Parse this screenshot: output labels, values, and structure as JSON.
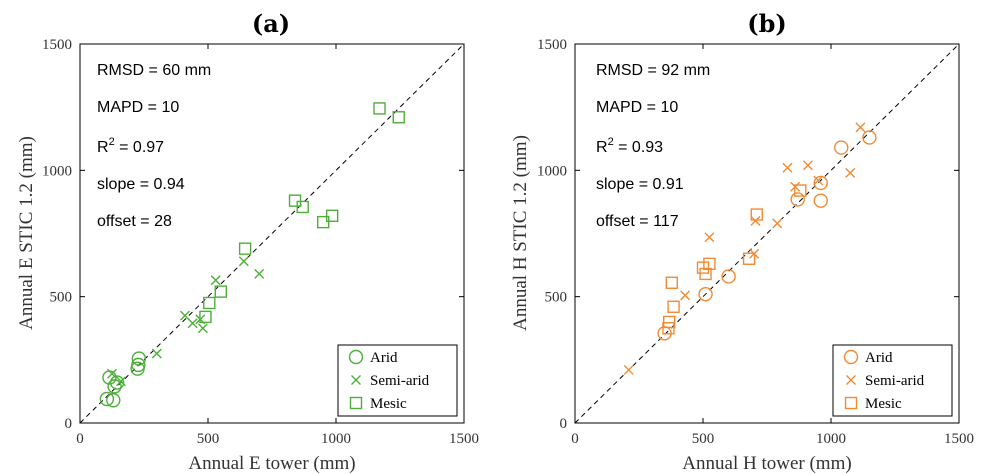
{
  "chart_data": [
    {
      "type": "scatter",
      "title": "(a)",
      "xlabel": "Annual E tower (mm)",
      "ylabel": "Annual E STIC 1.2 (mm)",
      "xlim": [
        0,
        1500
      ],
      "ylim": [
        0,
        1500
      ],
      "xticks": [
        "0",
        "500",
        "1000",
        "1500"
      ],
      "yticks": [
        "0",
        "500",
        "1000",
        "1500"
      ],
      "one_to_one_line": true,
      "color": "#4daf3a",
      "stats": [
        "RMSD = 60 mm",
        "MAPD = 10",
        "R²",
        "= 0.97",
        "slope = 0.94",
        "offset = 28"
      ],
      "stats_parts": {
        "rmsd": "RMSD = 60 mm",
        "mapd": "MAPD = 10",
        "r2_base": "R",
        "r2_sup": "2",
        "r2_val": " = 0.97",
        "slope": "slope = 0.94",
        "offset": "offset = 28"
      },
      "legend_position": "bottom-right",
      "series": [
        {
          "name": "Arid",
          "marker": "circle",
          "points": [
            [
              105,
              95
            ],
            [
              115,
              180
            ],
            [
              130,
              90
            ],
            [
              135,
              145
            ],
            [
              145,
              160
            ],
            [
              225,
              215
            ],
            [
              228,
              230
            ],
            [
              230,
              255
            ]
          ]
        },
        {
          "name": "Semi-arid",
          "marker": "x",
          "points": [
            [
              125,
              195
            ],
            [
              160,
              165
            ],
            [
              300,
              275
            ],
            [
              410,
              425
            ],
            [
              440,
              395
            ],
            [
              470,
              410
            ],
            [
              480,
              375
            ],
            [
              530,
              565
            ],
            [
              640,
              640
            ],
            [
              700,
              590
            ]
          ]
        },
        {
          "name": "Mesic",
          "marker": "square",
          "points": [
            [
              490,
              420
            ],
            [
              505,
              475
            ],
            [
              550,
              520
            ],
            [
              645,
              690
            ],
            [
              840,
              880
            ],
            [
              870,
              855
            ],
            [
              950,
              795
            ],
            [
              985,
              820
            ],
            [
              1170,
              1245
            ],
            [
              1245,
              1210
            ]
          ]
        }
      ]
    },
    {
      "type": "scatter",
      "title": "(b)",
      "xlabel": "Annual H tower (mm)",
      "ylabel": "Annual H STIC 1.2 (mm)",
      "xlim": [
        0,
        1500
      ],
      "ylim": [
        0,
        1500
      ],
      "xticks": [
        "0",
        "500",
        "1000",
        "1500"
      ],
      "yticks": [
        "0",
        "500",
        "1000",
        "1500"
      ],
      "one_to_one_line": true,
      "color": "#f28a33",
      "stats_parts": {
        "rmsd": "RMSD = 92 mm",
        "mapd": "MAPD = 10",
        "r2_base": "R",
        "r2_sup": "2",
        "r2_val": " = 0.93",
        "slope": "slope = 0.91",
        "offset": "offset = 117"
      },
      "legend_position": "bottom-right",
      "series": [
        {
          "name": "Arid",
          "marker": "circle",
          "points": [
            [
              350,
              355
            ],
            [
              510,
              510
            ],
            [
              600,
              580
            ],
            [
              870,
              885
            ],
            [
              960,
              880
            ],
            [
              960,
              950
            ],
            [
              1040,
              1090
            ],
            [
              1150,
              1130
            ]
          ]
        },
        {
          "name": "Semi-arid",
          "marker": "x",
          "points": [
            [
              210,
              210
            ],
            [
              430,
              505
            ],
            [
              525,
              735
            ],
            [
              700,
              670
            ],
            [
              705,
              800
            ],
            [
              790,
              790
            ],
            [
              830,
              1010
            ],
            [
              860,
              935
            ],
            [
              910,
              1020
            ],
            [
              950,
              960
            ],
            [
              1075,
              990
            ],
            [
              1115,
              1170
            ]
          ]
        },
        {
          "name": "Mesic",
          "marker": "square",
          "points": [
            [
              365,
              375
            ],
            [
              368,
              400
            ],
            [
              378,
              555
            ],
            [
              385,
              460
            ],
            [
              500,
              615
            ],
            [
              510,
              590
            ],
            [
              525,
              630
            ],
            [
              680,
              650
            ],
            [
              710,
              825
            ],
            [
              880,
              920
            ]
          ]
        }
      ]
    }
  ]
}
